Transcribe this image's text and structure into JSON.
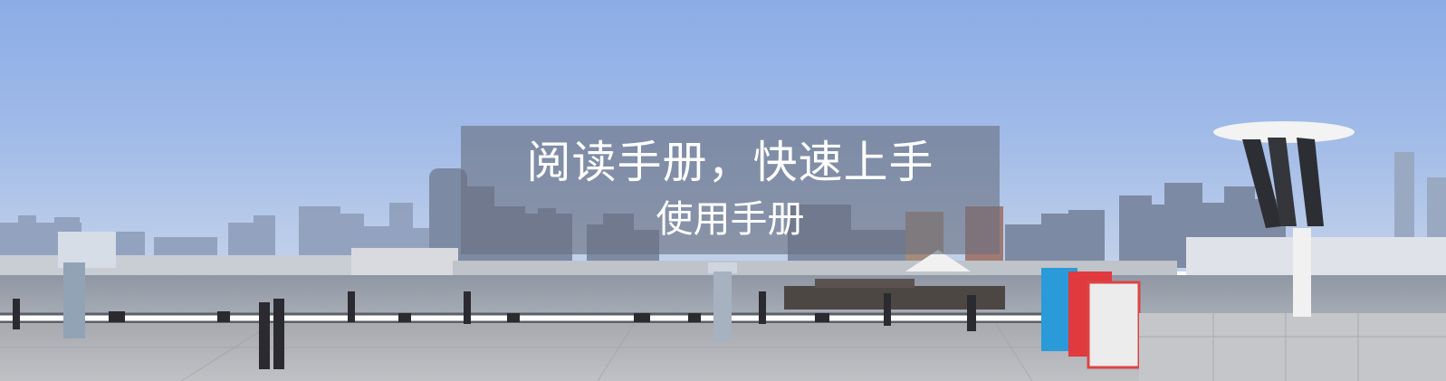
{
  "banner": {
    "title": "阅读手册，快速上手",
    "subtitle": "使用手册"
  },
  "colors": {
    "sky_top": "#8fb0e8",
    "sky_bottom": "#b9cdeb",
    "river": "#9aa2ae",
    "plaza": "#b3b5ba",
    "caption_bg": "#697080"
  }
}
